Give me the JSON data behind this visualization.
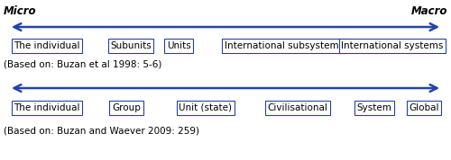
{
  "micro_label": "Micro",
  "macro_label": "Macro",
  "arrow_color": "#2244AA",
  "box_color": "#2244AA",
  "text_color": "#000000",
  "bg_color": "#FFFFFF",
  "row1_labels": [
    "The individual",
    "Subunits",
    "Units",
    "International subsystems",
    "International systems"
  ],
  "row1_citation": "(Based on: Buzan et al 1998: 5-6)",
  "row2_labels": [
    "The individual",
    "Group",
    "Unit (state)",
    "Civilisational",
    "System",
    "Global"
  ],
  "row2_citation": "(Based on: Buzan and Waever 2009: 259)",
  "fontsize_main": 7.5,
  "fontsize_italic": 8.5,
  "fontsize_citation": 7.5
}
